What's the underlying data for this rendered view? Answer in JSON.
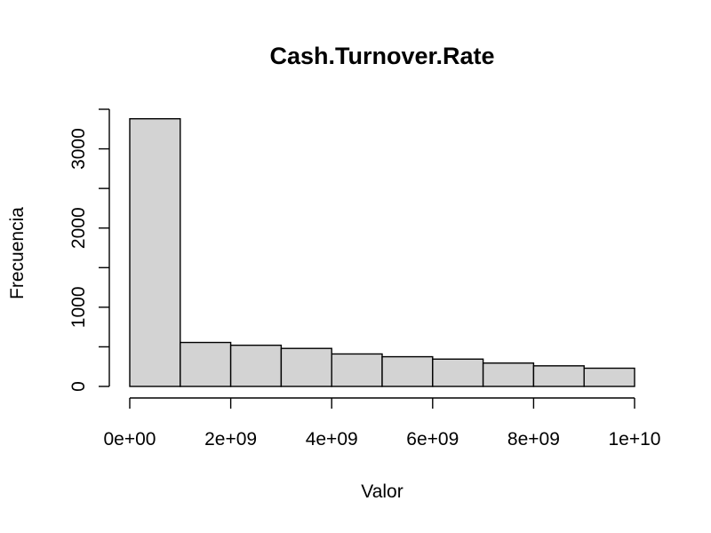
{
  "chart_data": {
    "type": "bar",
    "title": "Cash.Turnover.Rate",
    "xlabel": "Valor",
    "ylabel": "Frecuencia",
    "bin_edges": [
      0,
      1000000000,
      2000000000,
      3000000000,
      4000000000,
      5000000000,
      6000000000,
      7000000000,
      8000000000,
      9000000000,
      10000000000
    ],
    "values": [
      3380,
      555,
      520,
      480,
      410,
      375,
      345,
      295,
      260,
      230
    ],
    "xlim": [
      0,
      10000000000
    ],
    "ylim": [
      0,
      3500
    ],
    "x_ticks": [
      {
        "value": 0,
        "label": "0e+00"
      },
      {
        "value": 2000000000,
        "label": "2e+09"
      },
      {
        "value": 4000000000,
        "label": "4e+09"
      },
      {
        "value": 6000000000,
        "label": "6e+09"
      },
      {
        "value": 8000000000,
        "label": "8e+09"
      },
      {
        "value": 10000000000,
        "label": "1e+10"
      }
    ],
    "y_ticks": [
      0,
      500,
      1000,
      1500,
      2000,
      2500,
      3000,
      3500
    ],
    "y_tick_labels": [
      {
        "value": 0,
        "label": "0"
      },
      {
        "value": 1000,
        "label": "1000"
      },
      {
        "value": 2000,
        "label": "2000"
      },
      {
        "value": 3000,
        "label": "3000"
      }
    ],
    "grid": false,
    "legend": "none",
    "bar_color": "#d3d3d3"
  }
}
